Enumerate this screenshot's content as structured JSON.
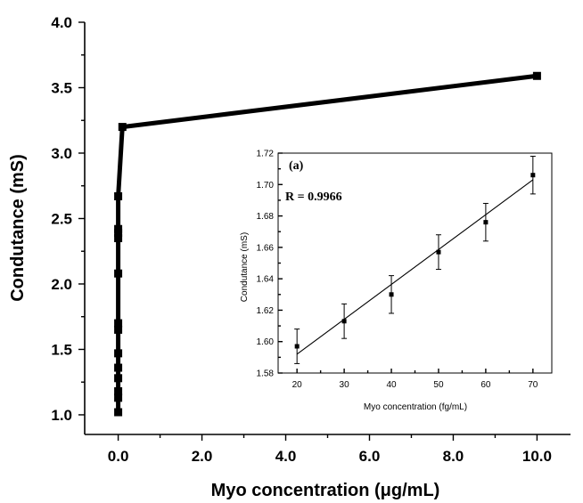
{
  "chart_data": [
    {
      "type": "line",
      "title": "",
      "xlabel": "Myo concentration (μg/mL)",
      "ylabel": "Condutance (mS)",
      "xlim": [
        -0.8,
        10.8
      ],
      "ylim": [
        0.85,
        4.0
      ],
      "x_ticks": [
        "0.0",
        "2.0",
        "4.0",
        "6.0",
        "8.0",
        "10.0"
      ],
      "y_ticks": [
        "1.0",
        "1.5",
        "2.0",
        "2.5",
        "3.0",
        "3.5",
        "4.0"
      ],
      "grid": false,
      "marker": "square",
      "series": [
        {
          "x": [
            0.0,
            0.0,
            0.0,
            0.0,
            0.0,
            0.0,
            0.0,
            0.0,
            0.0,
            0.0,
            0.0,
            0.0,
            0.0,
            0.1,
            10.0
          ],
          "y": [
            1.02,
            1.13,
            1.18,
            1.28,
            1.36,
            1.47,
            1.65,
            1.7,
            2.08,
            2.35,
            2.39,
            2.42,
            2.67,
            3.2,
            3.59
          ]
        }
      ]
    },
    {
      "type": "scatter",
      "annotation_label": "(a)",
      "r_label": "R = 0.9966",
      "title": "",
      "xlabel": "Myo concentration (fg/mL)",
      "ylabel": "Condutance (mS)",
      "xlim": [
        16,
        74
      ],
      "ylim": [
        1.58,
        1.72
      ],
      "x_ticks": [
        "20",
        "30",
        "40",
        "50",
        "60",
        "70"
      ],
      "y_ticks": [
        "1.58",
        "1.60",
        "1.62",
        "1.64",
        "1.66",
        "1.68",
        "1.70",
        "1.72"
      ],
      "grid": false,
      "series": [
        {
          "x": [
            20,
            30,
            40,
            50,
            60,
            70
          ],
          "y": [
            1.597,
            1.613,
            1.63,
            1.657,
            1.676,
            1.706
          ],
          "error": [
            0.011,
            0.011,
            0.012,
            0.011,
            0.012,
            0.012
          ]
        }
      ],
      "fit_line": {
        "x": [
          20,
          70
        ],
        "y": [
          1.592,
          1.703
        ]
      }
    }
  ]
}
